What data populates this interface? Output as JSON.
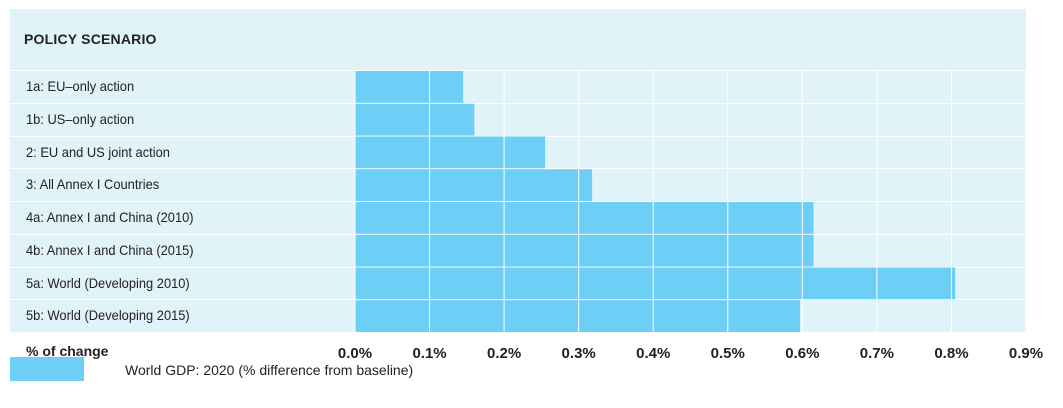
{
  "chart_data": {
    "type": "bar",
    "orientation": "horizontal",
    "title": "POLICY SCENARIO",
    "xlabel": "% of change",
    "categories": [
      "1a: EU–only action",
      "1b: US–only action",
      "2: EU and US joint action",
      "3: All Annex I Countries",
      "4a: Annex I and China (2010)",
      "4b: Annex I and China (2015)",
      "5a: World (Developing 2010)",
      "5b: World (Developing 2015)"
    ],
    "series": [
      {
        "name": "World GDP: 2020 (% difference from baseline)",
        "values": [
          0.145,
          0.16,
          0.255,
          0.318,
          0.615,
          0.615,
          0.805,
          0.597
        ]
      }
    ],
    "xlim": [
      0,
      0.9
    ],
    "xticks": [
      "0.0%",
      "0.1%",
      "0.2%",
      "0.3%",
      "0.4%",
      "0.5%",
      "0.6%",
      "0.7%",
      "0.8%",
      "0.9%"
    ],
    "grid": true,
    "legend": "bottom-left",
    "colors": {
      "bar": "#6dcff6",
      "panel": "#e0f3f9",
      "grid": "#ffffff"
    }
  }
}
